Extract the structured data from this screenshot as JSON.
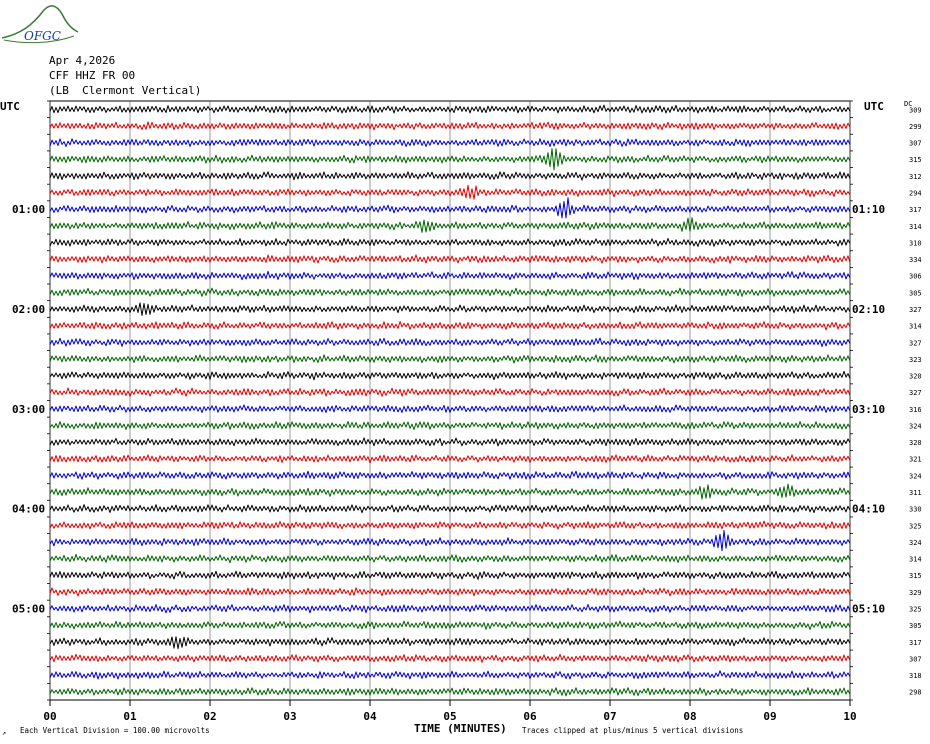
{
  "logo": {
    "text": "OFGC"
  },
  "header": {
    "date": "Apr 4,2026",
    "station": "CFF HHZ FR 00",
    "location": "(LB  Clermont Vertical)"
  },
  "left_axis_label": "UTC",
  "right_axis_label": "UTC",
  "dc_label": "DC",
  "footer": {
    "scale_note": "Each Vertical Division =  100.00 microvolts",
    "clip_note": "Traces clipped at plus/minus 5 vertical divisions",
    "corner_mark": "↗"
  },
  "colors": {
    "trace_cycle": [
      "#000000",
      "#e00000",
      "#0000d0",
      "#006400"
    ],
    "grid": "#000000",
    "background": "#ffffff",
    "logo": "#3a7a3a",
    "logo_text": "#1a3aa0"
  },
  "chart_data": {
    "type": "line",
    "subtype": "helicorder",
    "xlabel": "TIME (MINUTES)",
    "x_ticks": [
      "00",
      "01",
      "02",
      "03",
      "04",
      "05",
      "06",
      "07",
      "08",
      "09",
      "10"
    ],
    "xlim": [
      0,
      10
    ],
    "left_time_labels": [
      {
        "row": 6,
        "label": "01:00"
      },
      {
        "row": 12,
        "label": "02:00"
      },
      {
        "row": 18,
        "label": "03:00"
      },
      {
        "row": 24,
        "label": "04:00"
      },
      {
        "row": 30,
        "label": "05:00"
      }
    ],
    "right_time_labels": [
      {
        "row": 6,
        "label": "01:10"
      },
      {
        "row": 12,
        "label": "02:10"
      },
      {
        "row": 18,
        "label": "03:10"
      },
      {
        "row": 24,
        "label": "04:10"
      },
      {
        "row": 30,
        "label": "05:10"
      }
    ],
    "dc_offsets": [
      309,
      299,
      307,
      315,
      312,
      294,
      317,
      314,
      310,
      334,
      306,
      305,
      327,
      314,
      327,
      323,
      320,
      327,
      316,
      324,
      320,
      321,
      324,
      311,
      330,
      325,
      324,
      314,
      315,
      329,
      325,
      305,
      317,
      307,
      318,
      298
    ],
    "row_count": 36,
    "events": [
      {
        "row": 3,
        "minute": 6.3,
        "amplitude": "large"
      },
      {
        "row": 5,
        "minute": 5.25,
        "amplitude": "medium"
      },
      {
        "row": 6,
        "minute": 6.45,
        "amplitude": "large"
      },
      {
        "row": 7,
        "minute": 4.7,
        "amplitude": "medium"
      },
      {
        "row": 7,
        "minute": 8.0,
        "amplitude": "medium"
      },
      {
        "row": 12,
        "minute": 1.2,
        "amplitude": "medium"
      },
      {
        "row": 23,
        "minute": 8.2,
        "amplitude": "medium"
      },
      {
        "row": 23,
        "minute": 9.2,
        "amplitude": "medium"
      },
      {
        "row": 26,
        "minute": 8.4,
        "amplitude": "large"
      },
      {
        "row": 32,
        "minute": 1.6,
        "amplitude": "medium"
      }
    ]
  }
}
